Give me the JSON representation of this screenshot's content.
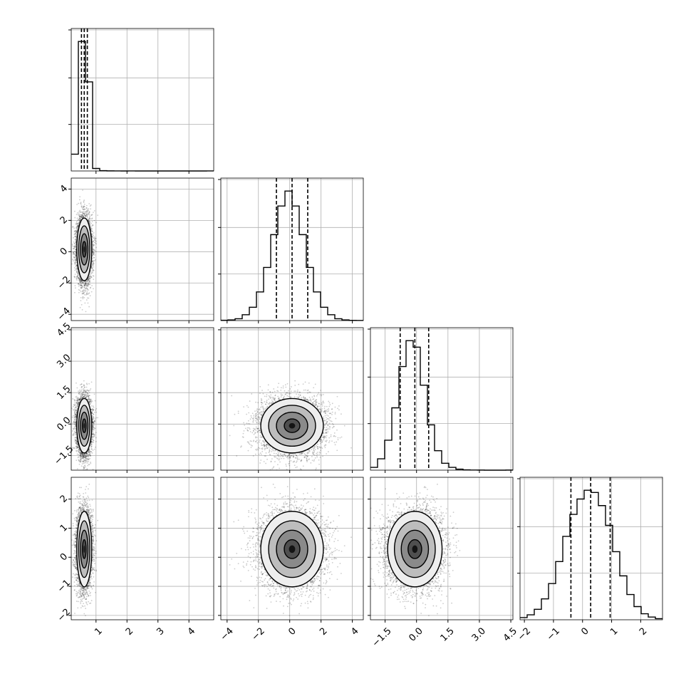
{
  "chart_data": {
    "type": "corner",
    "n_params": 4,
    "axis_labels": [
      "",
      "",
      "",
      ""
    ],
    "ranges": [
      [
        0.2,
        4.8
      ],
      [
        -4.4,
        4.7
      ],
      [
        -2.2,
        4.6
      ],
      [
        -2.15,
        2.75
      ]
    ],
    "ticks": [
      {
        "values": [
          1,
          2,
          3,
          4
        ],
        "labels": [
          "1",
          "2",
          "3",
          "4"
        ]
      },
      {
        "values": [
          -4,
          -2,
          0,
          2,
          4
        ],
        "labels": [
          "−4",
          "−2",
          "0",
          "2",
          "4"
        ]
      },
      {
        "values": [
          -1.5,
          0,
          1.5,
          3,
          4.5
        ],
        "labels": [
          "−1.5",
          "0.0",
          "1.5",
          "3.0",
          "4.5"
        ]
      },
      {
        "values": [
          -2,
          -1,
          0,
          1,
          2
        ],
        "labels": [
          "−2",
          "−1",
          "0",
          "1",
          "2"
        ]
      }
    ],
    "quantiles": [
      [
        0.53,
        0.62,
        0.72
      ],
      [
        -0.85,
        0.15,
        1.15
      ],
      [
        -0.78,
        -0.08,
        0.58
      ],
      [
        -0.4,
        0.28,
        0.95
      ]
    ],
    "histograms": [
      {
        "bins": [
          0.2,
          0.43,
          0.66,
          0.89,
          1.12,
          1.35,
          1.58,
          1.81,
          2.04,
          2.27,
          2.5,
          2.73,
          2.96,
          3.19,
          3.42,
          3.65,
          3.88,
          4.11,
          4.34,
          4.57,
          4.8
        ],
        "counts": [
          370,
          2850,
          1960,
          55,
          6,
          2,
          1,
          0,
          1,
          0,
          0,
          0,
          0,
          0,
          0,
          0,
          0,
          0,
          0,
          1
        ]
      },
      {
        "bins": [
          -4.4,
          -3.945,
          -3.49,
          -3.035,
          -2.58,
          -2.125,
          -1.67,
          -1.215,
          -0.76,
          -0.305,
          0.15,
          0.605,
          1.06,
          1.515,
          1.97,
          2.425,
          2.88,
          3.335,
          3.79,
          4.245,
          4.7
        ],
        "counts": [
          4,
          8,
          22,
          70,
          160,
          345,
          640,
          1035,
          1380,
          1560,
          1380,
          1035,
          640,
          345,
          160,
          70,
          22,
          8,
          3,
          2
        ]
      },
      {
        "bins": [
          -2.2,
          -1.86,
          -1.52,
          -1.18,
          -0.84,
          -0.5,
          -0.16,
          0.18,
          0.52,
          0.86,
          1.2,
          1.54,
          1.88,
          2.22,
          2.56,
          2.9,
          3.24,
          3.58,
          3.92,
          4.26,
          4.6
        ],
        "counts": [
          35,
          140,
          370,
          770,
          1280,
          1600,
          1520,
          1050,
          560,
          240,
          85,
          35,
          12,
          4,
          2,
          1,
          0,
          0,
          0,
          1
        ]
      },
      {
        "bins": [
          -2.15,
          -1.905,
          -1.66,
          -1.415,
          -1.17,
          -0.925,
          -0.68,
          -0.435,
          -0.19,
          0.055,
          0.3,
          0.545,
          0.79,
          1.035,
          1.28,
          1.525,
          1.77,
          2.015,
          2.26,
          2.505,
          2.75
        ],
        "counts": [
          20,
          45,
          95,
          190,
          330,
          530,
          760,
          960,
          1100,
          1180,
          1160,
          1040,
          860,
          620,
          400,
          230,
          120,
          55,
          25,
          10
        ]
      }
    ],
    "distributions": [
      {
        "mean": 0.62,
        "sd": 0.12
      },
      {
        "mean": 0.15,
        "sd": 1.0
      },
      {
        "mean": -0.08,
        "sd": 0.65
      },
      {
        "mean": 0.28,
        "sd": 0.65
      }
    ],
    "n_samples": 6000,
    "grid": true,
    "colors": {
      "line": "#000000",
      "grid": "#b0b0b0",
      "point": "#000000"
    }
  }
}
